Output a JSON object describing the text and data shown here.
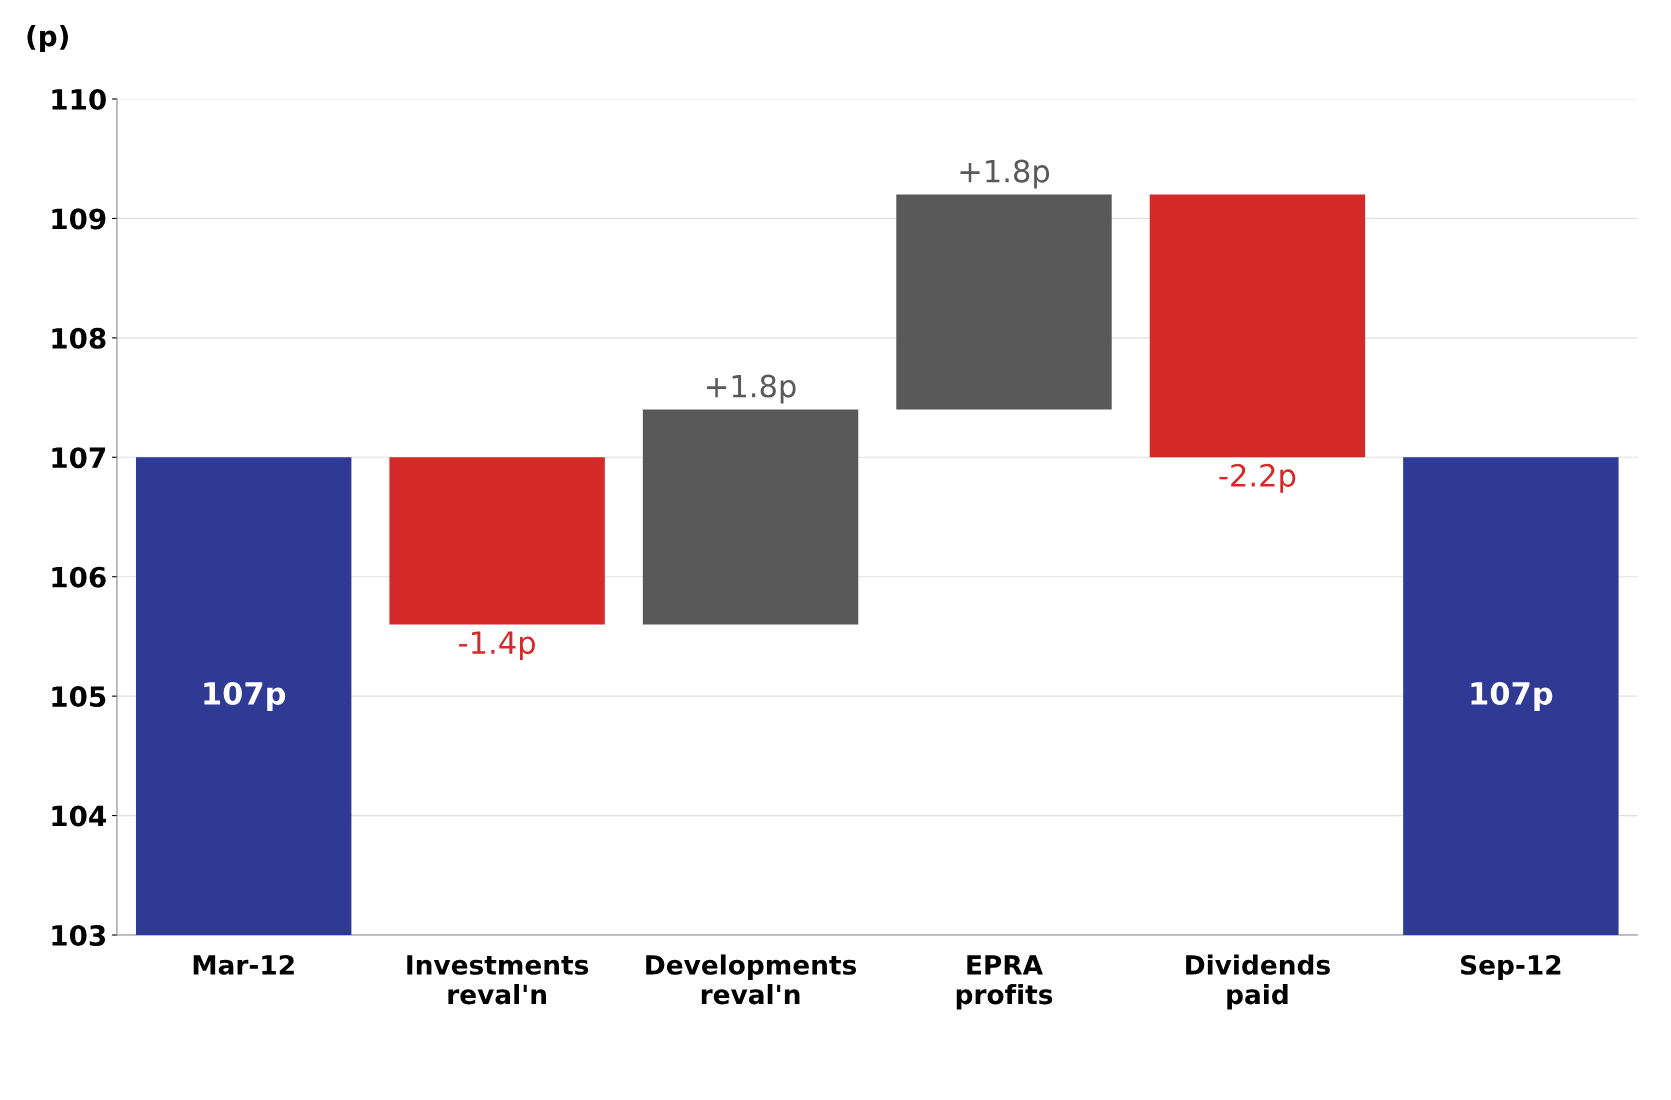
{
  "chart_data": {
    "type": "bar",
    "ylabel": "(p)",
    "categories": [
      "Mar-12",
      "Investments\nreval'n",
      "Developments\nreval'n",
      "EPRA\nprofits",
      "Dividends\npaid",
      "Sep-12"
    ],
    "values": [
      107,
      -1.4,
      1.8,
      1.8,
      -2.2,
      107
    ],
    "base": [
      null,
      107,
      105.6,
      107.4,
      109.2,
      null
    ],
    "colors": [
      "#2e3a94",
      "#d42a2a",
      "#595959",
      "#595959",
      "#d42a2a",
      "#2e3a94"
    ],
    "value_labels": [
      "107p",
      "-1.4p",
      "+1.8p",
      "+1.8p",
      "-2.2p",
      "107p"
    ],
    "ylim": [
      103,
      110
    ],
    "yticks": [
      103,
      104,
      105,
      106,
      107,
      108,
      109,
      110
    ],
    "grid": "y",
    "legend": false
  }
}
